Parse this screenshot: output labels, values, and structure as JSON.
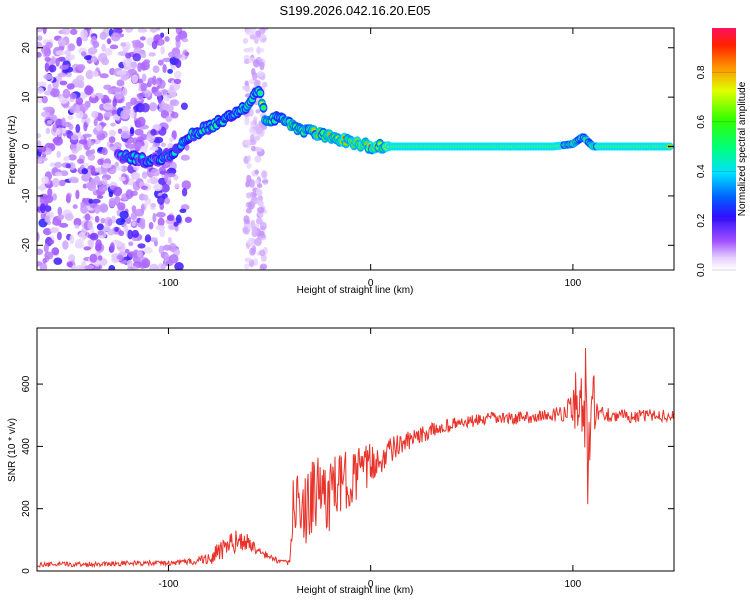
{
  "title": "S199.2026.042.16.20.E05",
  "chart_data": [
    {
      "type": "heatmap",
      "name": "spectrogram",
      "xlabel": "Height of straight line (km)",
      "ylabel": "Frequency (Hz)",
      "xlim": [
        -165,
        150
      ],
      "ylim": [
        -25,
        24
      ],
      "xticks": [
        -100,
        0,
        100
      ],
      "yticks": [
        -20,
        -10,
        0,
        10,
        20
      ],
      "ridge": {
        "x": [
          -120,
          -110,
          -100,
          -95,
          -90,
          -80,
          -70,
          -62,
          -55,
          -52,
          -45,
          -38,
          -30,
          -20,
          -10,
          0,
          10,
          50,
          90,
          100,
          105,
          110,
          150
        ],
        "freq": [
          -2,
          -3,
          -2,
          0,
          2,
          4,
          6,
          8,
          12,
          5,
          6,
          4,
          3,
          2,
          1,
          0,
          0,
          0,
          0,
          0.5,
          2,
          0,
          0
        ]
      },
      "colorbar": {
        "label": "Normalized spectral amplitude",
        "range": [
          0,
          0.98
        ],
        "ticks": [
          0.0,
          0.2,
          0.4,
          0.6,
          0.8
        ],
        "tick_labels": [
          "0.0",
          "0.2",
          "0.4",
          "0.6",
          "0.8"
        ]
      }
    },
    {
      "type": "line",
      "name": "snr",
      "xlabel": "Height of straight line (km)",
      "ylabel": "SNR (10 * v/v)",
      "xlim": [
        -165,
        150
      ],
      "ylim": [
        0,
        780
      ],
      "xticks": [
        -100,
        0,
        100
      ],
      "yticks": [
        0,
        200,
        400,
        600
      ],
      "color": "#e8332a",
      "series": [
        {
          "name": "SNR",
          "x": [
            -165,
            -140,
            -120,
            -100,
            -90,
            -80,
            -75,
            -70,
            -65,
            -60,
            -55,
            -45,
            -40,
            -38,
            -35,
            -30,
            -25,
            -20,
            -15,
            -10,
            -5,
            0,
            5,
            10,
            20,
            30,
            40,
            50,
            60,
            70,
            80,
            90,
            95,
            100,
            103,
            106,
            108,
            110,
            112,
            120,
            130,
            140,
            150
          ],
          "y": [
            20,
            22,
            25,
            25,
            30,
            40,
            60,
            80,
            100,
            90,
            60,
            30,
            25,
            250,
            180,
            220,
            260,
            240,
            280,
            300,
            320,
            340,
            360,
            390,
            420,
            450,
            470,
            480,
            490,
            490,
            495,
            500,
            510,
            520,
            580,
            560,
            300,
            560,
            510,
            500,
            495,
            500,
            500
          ],
          "amp": [
            8,
            8,
            8,
            8,
            10,
            20,
            35,
            40,
            35,
            25,
            15,
            8,
            8,
            90,
            110,
            120,
            130,
            120,
            100,
            90,
            80,
            70,
            50,
            40,
            30,
            25,
            22,
            20,
            20,
            20,
            20,
            20,
            30,
            60,
            150,
            200,
            200,
            120,
            40,
            20,
            20,
            20,
            20
          ]
        }
      ]
    }
  ]
}
